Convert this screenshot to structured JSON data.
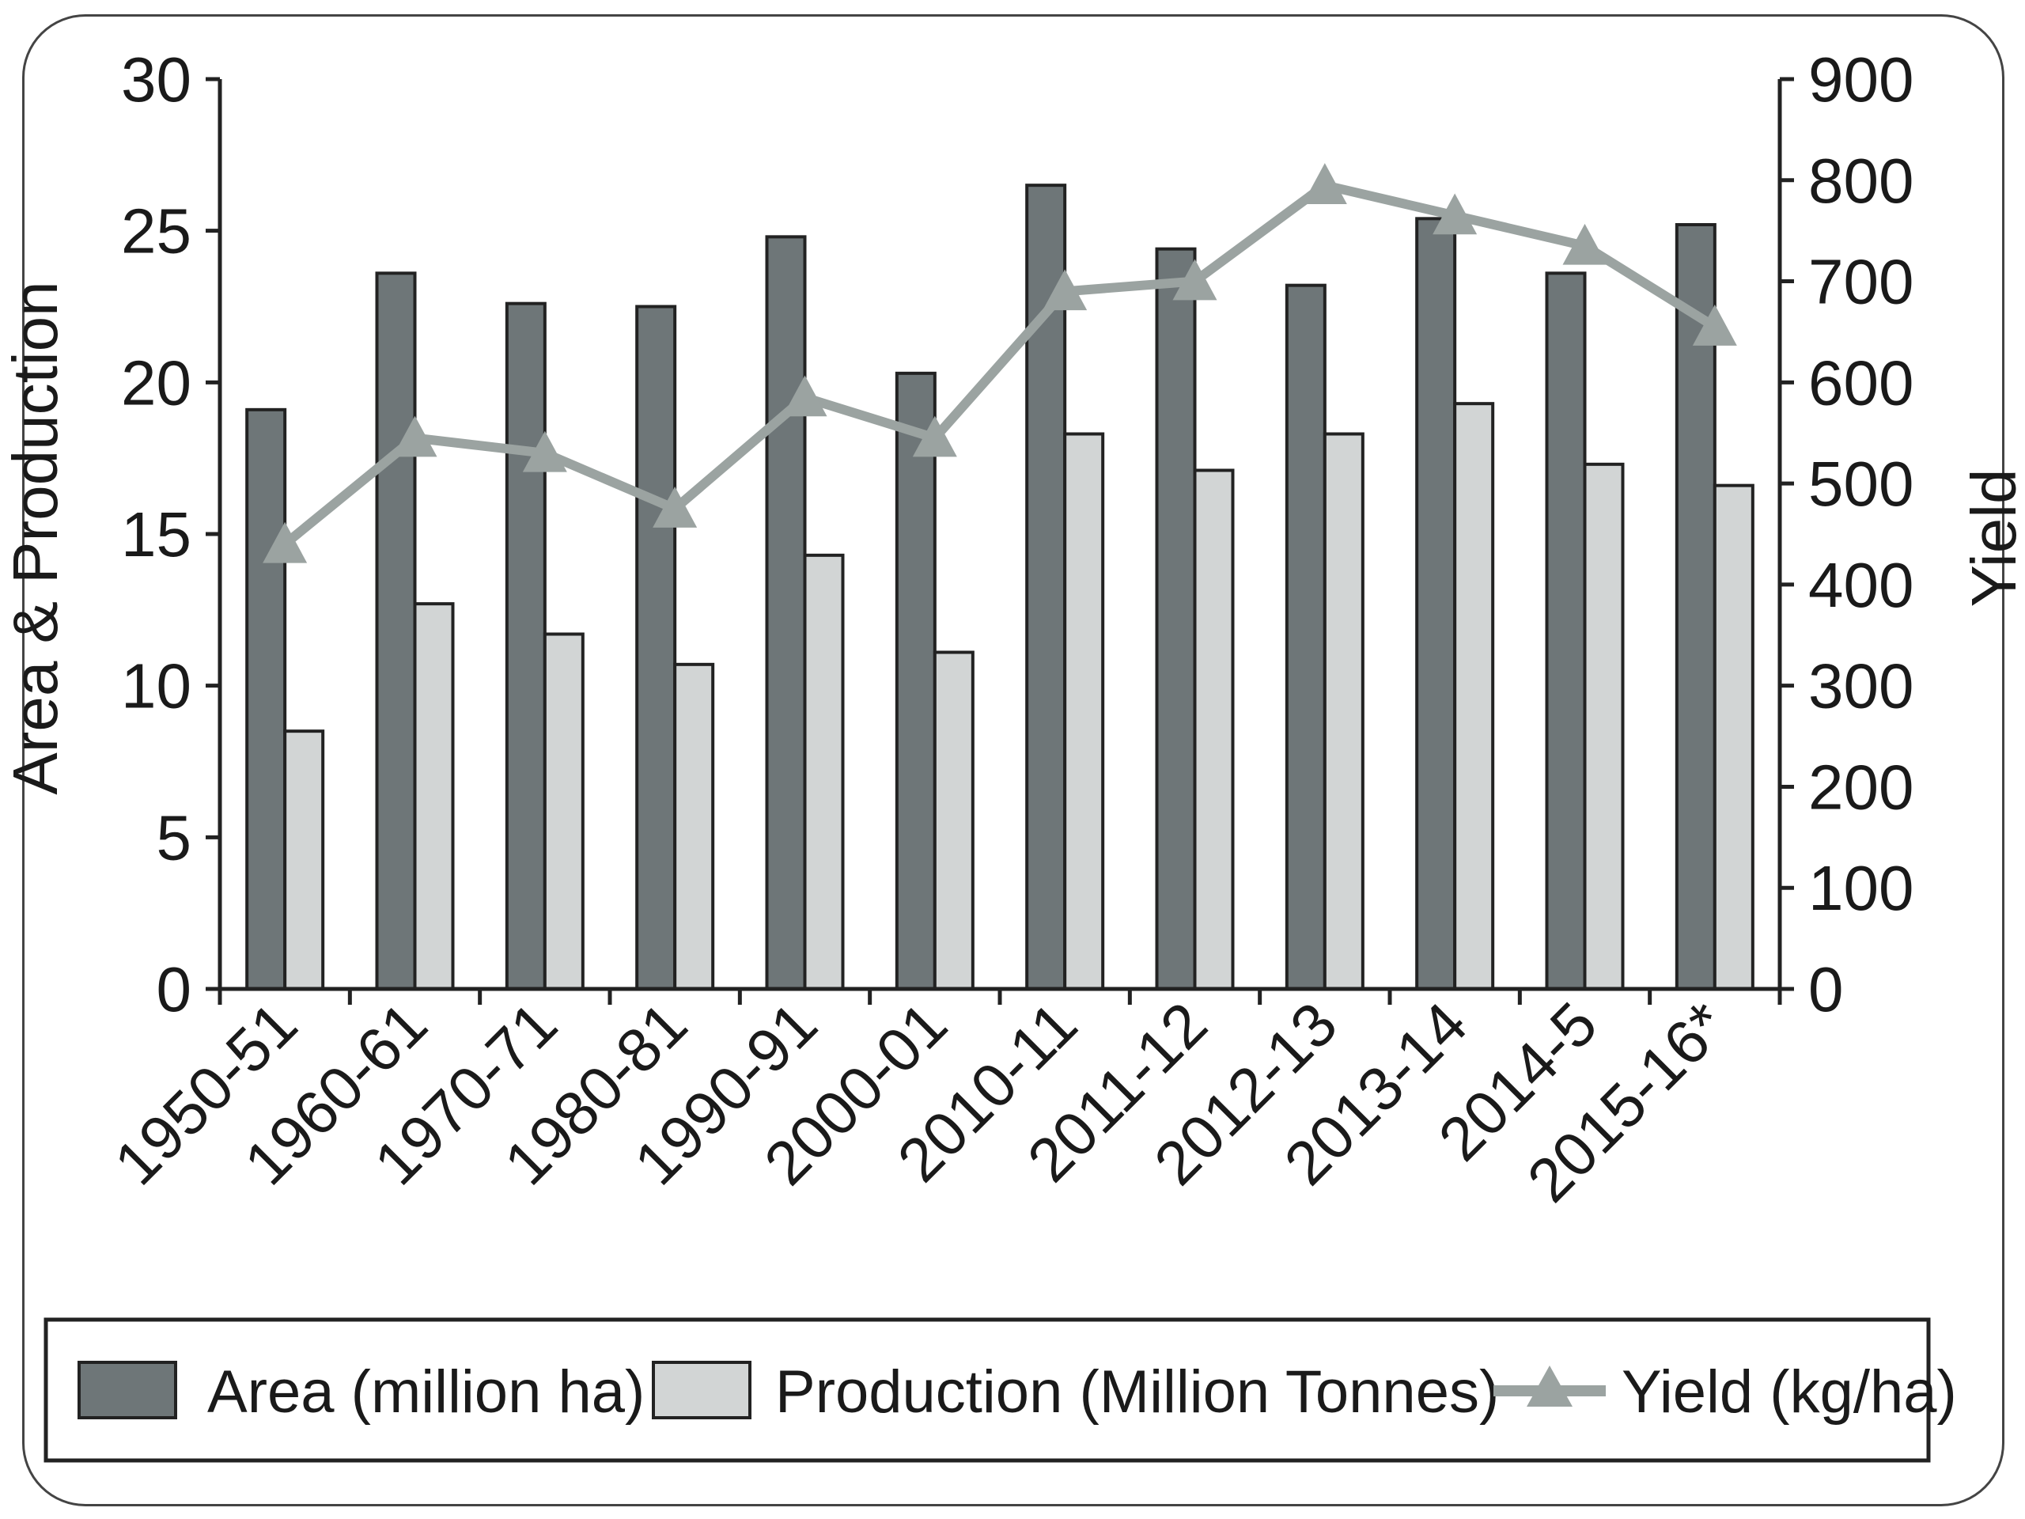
{
  "chart_data": {
    "type": "bar",
    "categories": [
      "1950-51",
      "1960-61",
      "1970-71",
      "1980-81",
      "1990-91",
      "2000-01",
      "2010-11",
      "2011-12",
      "2012-13",
      "2013-14",
      "2014-5",
      "2015-16*"
    ],
    "series": [
      {
        "name": "Area (million ha)",
        "type": "bar",
        "axis": "left",
        "color": "#6e7678",
        "values": [
          19.1,
          23.6,
          22.6,
          22.5,
          24.8,
          20.3,
          26.5,
          24.4,
          23.2,
          25.4,
          23.6,
          25.2
        ]
      },
      {
        "name": "Production (Million Tonnes)",
        "type": "bar",
        "axis": "left",
        "color": "#d2d5d5",
        "values": [
          8.5,
          12.7,
          11.7,
          10.7,
          14.3,
          11.1,
          18.3,
          17.1,
          18.3,
          19.3,
          17.3,
          16.6
        ]
      },
      {
        "name": "Yield (kg/ha)",
        "type": "line",
        "axis": "right",
        "color": "#9ba3a1",
        "marker": "triangle",
        "values": [
          440,
          545,
          530,
          475,
          585,
          545,
          690,
          700,
          795,
          765,
          735,
          655
        ]
      }
    ],
    "ylabel": "Area & Production",
    "y2label": "Yield",
    "ylim": [
      0,
      30
    ],
    "y2lim": [
      0,
      900
    ],
    "yticks": [
      "0",
      "5",
      "10",
      "15",
      "20",
      "25",
      "30"
    ],
    "y2ticks": [
      "0",
      "100",
      "200",
      "300",
      "400",
      "500",
      "600",
      "700",
      "800",
      "900"
    ],
    "legend_position": "bottom",
    "grid": false
  }
}
